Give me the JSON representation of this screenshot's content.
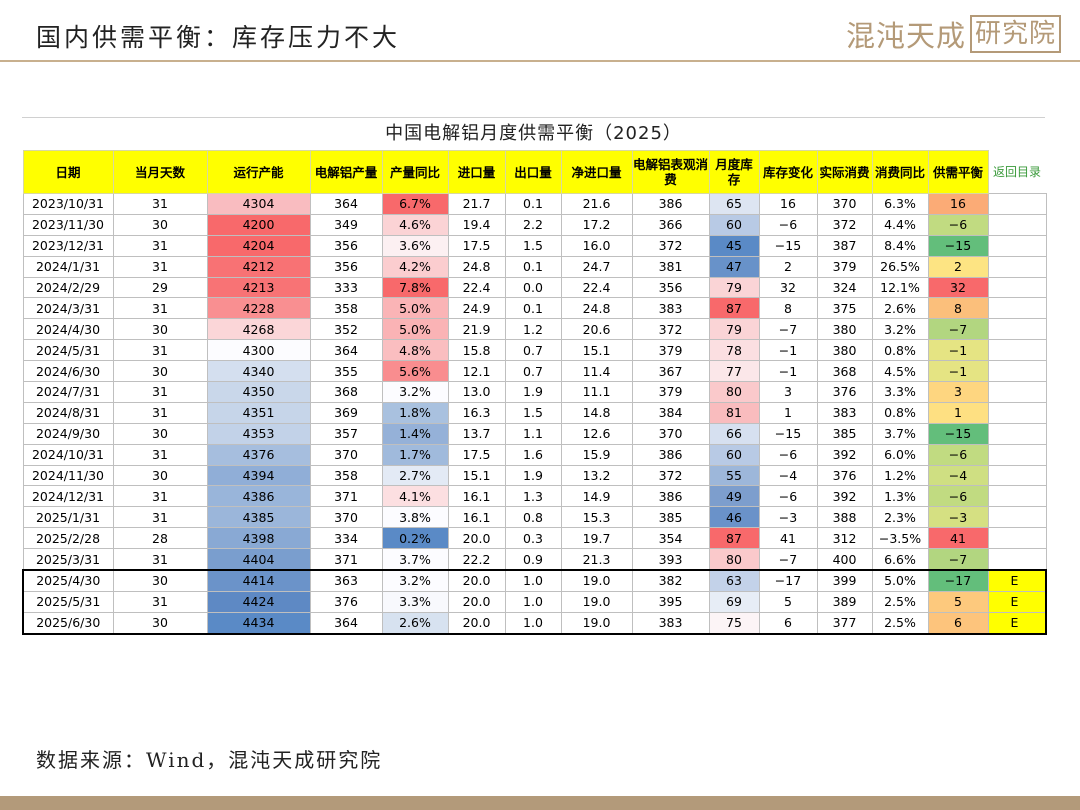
{
  "slide": {
    "title": "国内供需平衡：库存压力不大",
    "logo_text": "混沌天成",
    "logo_boxed": "研究院",
    "source": "数据来源：Wind，混沌天成研究院"
  },
  "table": {
    "title": "中国电解铝月度供需平衡（2025）",
    "back_link": "返回目录",
    "headers": [
      "日期",
      "当月天数",
      "运行产能",
      "电解铝产量",
      "产量同比",
      "进口量",
      "出口量",
      "净进口量",
      "电解铝表观消费",
      "月度库存",
      "库存变化",
      "实际消费",
      "消费同比",
      "供需平衡"
    ],
    "rows": [
      [
        "2023/10/31",
        "31",
        "4304",
        "364",
        "6.7%",
        "21.7",
        "0.1",
        "21.6",
        "386",
        "65",
        "16",
        "370",
        "6.3%",
        "16",
        ""
      ],
      [
        "2023/11/30",
        "30",
        "4200",
        "349",
        "4.6%",
        "19.4",
        "2.2",
        "17.2",
        "366",
        "60",
        "−6",
        "372",
        "4.4%",
        "−6",
        ""
      ],
      [
        "2023/12/31",
        "31",
        "4204",
        "356",
        "3.6%",
        "17.5",
        "1.5",
        "16.0",
        "372",
        "45",
        "−15",
        "387",
        "8.4%",
        "−15",
        ""
      ],
      [
        "2024/1/31",
        "31",
        "4212",
        "356",
        "4.2%",
        "24.8",
        "0.1",
        "24.7",
        "381",
        "47",
        "2",
        "379",
        "26.5%",
        "2",
        ""
      ],
      [
        "2024/2/29",
        "29",
        "4213",
        "333",
        "7.8%",
        "22.4",
        "0.0",
        "22.4",
        "356",
        "79",
        "32",
        "324",
        "12.1%",
        "32",
        ""
      ],
      [
        "2024/3/31",
        "31",
        "4228",
        "358",
        "5.0%",
        "24.9",
        "0.1",
        "24.8",
        "383",
        "87",
        "8",
        "375",
        "2.6%",
        "8",
        ""
      ],
      [
        "2024/4/30",
        "30",
        "4268",
        "352",
        "5.0%",
        "21.9",
        "1.2",
        "20.6",
        "372",
        "79",
        "−7",
        "380",
        "3.2%",
        "−7",
        ""
      ],
      [
        "2024/5/31",
        "31",
        "4300",
        "364",
        "4.8%",
        "15.8",
        "0.7",
        "15.1",
        "379",
        "78",
        "−1",
        "380",
        "0.8%",
        "−1",
        ""
      ],
      [
        "2024/6/30",
        "30",
        "4340",
        "355",
        "5.6%",
        "12.1",
        "0.7",
        "11.4",
        "367",
        "77",
        "−1",
        "368",
        "4.5%",
        "−1",
        ""
      ],
      [
        "2024/7/31",
        "31",
        "4350",
        "368",
        "3.2%",
        "13.0",
        "1.9",
        "11.1",
        "379",
        "80",
        "3",
        "376",
        "3.3%",
        "3",
        ""
      ],
      [
        "2024/8/31",
        "31",
        "4351",
        "369",
        "1.8%",
        "16.3",
        "1.5",
        "14.8",
        "384",
        "81",
        "1",
        "383",
        "0.8%",
        "1",
        ""
      ],
      [
        "2024/9/30",
        "30",
        "4353",
        "357",
        "1.4%",
        "13.7",
        "1.1",
        "12.6",
        "370",
        "66",
        "−15",
        "385",
        "3.7%",
        "−15",
        ""
      ],
      [
        "2024/10/31",
        "31",
        "4376",
        "370",
        "1.7%",
        "17.5",
        "1.6",
        "15.9",
        "386",
        "60",
        "−6",
        "392",
        "6.0%",
        "−6",
        ""
      ],
      [
        "2024/11/30",
        "30",
        "4394",
        "358",
        "2.7%",
        "15.1",
        "1.9",
        "13.2",
        "372",
        "55",
        "−4",
        "376",
        "1.2%",
        "−4",
        ""
      ],
      [
        "2024/12/31",
        "31",
        "4386",
        "371",
        "4.1%",
        "16.1",
        "1.3",
        "14.9",
        "386",
        "49",
        "−6",
        "392",
        "1.3%",
        "−6",
        ""
      ],
      [
        "2025/1/31",
        "31",
        "4385",
        "370",
        "3.8%",
        "16.1",
        "0.8",
        "15.3",
        "385",
        "46",
        "−3",
        "388",
        "2.3%",
        "−3",
        ""
      ],
      [
        "2025/2/28",
        "28",
        "4398",
        "334",
        "0.2%",
        "20.0",
        "0.3",
        "19.7",
        "354",
        "87",
        "41",
        "312",
        "−3.5%",
        "41",
        ""
      ],
      [
        "2025/3/31",
        "31",
        "4404",
        "371",
        "3.7%",
        "22.2",
        "0.9",
        "21.3",
        "393",
        "80",
        "−7",
        "400",
        "6.6%",
        "−7",
        ""
      ],
      [
        "2025/4/30",
        "30",
        "4414",
        "363",
        "3.2%",
        "20.0",
        "1.0",
        "19.0",
        "382",
        "63",
        "−17",
        "399",
        "5.0%",
        "−17",
        "E"
      ],
      [
        "2025/5/31",
        "31",
        "4424",
        "376",
        "3.3%",
        "20.0",
        "1.0",
        "19.0",
        "395",
        "69",
        "5",
        "389",
        "2.5%",
        "5",
        "E"
      ],
      [
        "2025/6/30",
        "30",
        "4434",
        "364",
        "2.6%",
        "20.0",
        "1.0",
        "19.0",
        "383",
        "75",
        "6",
        "377",
        "2.5%",
        "6",
        "E"
      ]
    ],
    "heat_colors": {
      "capacity": [
        "#f9bcc0",
        "#f8696b",
        "#f8696b",
        "#f87274",
        "#f87375",
        "#f98f91",
        "#fbd6d8",
        "#fcfcff",
        "#d4dfef",
        "#c9d7ea",
        "#c6d5e9",
        "#c2d2e8",
        "#a6bede",
        "#90aed7",
        "#99b5da",
        "#9bb6da",
        "#89a9d4",
        "#7a9ece",
        "#6b93c9",
        "#5e89c4",
        "#5a8ac6"
      ],
      "output_yoy": [
        "#f8696b",
        "#fbd3d5",
        "#fcf0f2",
        "#fbcdcf",
        "#f8696b",
        "#fab4b6",
        "#fab3b5",
        "#fabec0",
        "#f98d8f",
        "#fcfcff",
        "#a9c1df",
        "#95b1d8",
        "#a0badc",
        "#e3eaf5",
        "#fcdfe1",
        "#fcfcff",
        "#5a8ac6",
        "#fcfcff",
        "#fcfcff",
        "#f8f9fd",
        "#d7e2f0"
      ],
      "inventory": [
        "#dde5f2",
        "#b8cae5",
        "#5a8ac6",
        "#6892c9",
        "#fad4d6",
        "#f8696b",
        "#fad4d6",
        "#fbdfe1",
        "#fbe7e9",
        "#fac9cb",
        "#f9bcbe",
        "#d6e0f0",
        "#b8cae5",
        "#9db7da",
        "#7d9ecd",
        "#6a92c9",
        "#f8696b",
        "#fac9cb",
        "#c3d2e9",
        "#e7edf6",
        "#fcf4f6"
      ],
      "balance": [
        "#fbab76",
        "#c1db81",
        "#63be7b",
        "#fde483",
        "#f8696b",
        "#fbbf7b",
        "#b2d680",
        "#e5e483",
        "#e5e483",
        "#fed680",
        "#fee082",
        "#63be7b",
        "#c1db81",
        "#cfdf82",
        "#c1db81",
        "#d5e082",
        "#f8696b",
        "#b2d680",
        "#63be7b",
        "#fdc97d",
        "#fdc47c"
      ]
    }
  }
}
